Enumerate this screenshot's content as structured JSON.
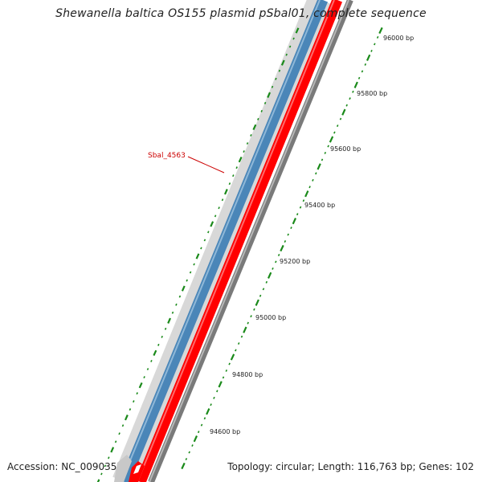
{
  "title": "Shewanella baltica OS155 plasmid pSbal01, complete sequence",
  "footer": {
    "accession": "Accession: NC_009035",
    "topology": "Topology: circular; Length: 116,763 bp; Genes: 102"
  },
  "gene_label": "Sbal_4563",
  "scale_labels": [
    "96000 bp",
    "95800 bp",
    "95600 bp",
    "95400 bp",
    "95200 bp",
    "95000 bp",
    "94800 bp",
    "94600 bp"
  ],
  "colors": {
    "forward_strand": "#4a86b8",
    "reverse_strand": "#ff0000",
    "backbone": "#7a7a7a",
    "ticks": "#1a8a1a",
    "gene_label": "#cc0000"
  }
}
